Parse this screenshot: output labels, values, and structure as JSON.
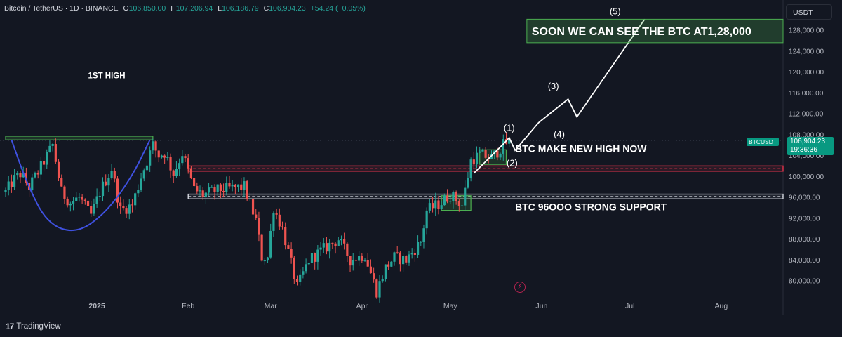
{
  "header": {
    "symbol": "Bitcoin / TetherUS · 1D · BINANCE",
    "o_key": "O",
    "o_val": "106,850.00",
    "h_key": "H",
    "h_val": "107,206.94",
    "l_key": "L",
    "l_val": "106,186.79",
    "c_key": "C",
    "c_val": "106,904.23",
    "change": "+54.24 (+0.05%)"
  },
  "currency_button": "USDT",
  "price_label": {
    "symbol": "BTCUSDT",
    "price": "106,904.23",
    "countdown": "19:36:36"
  },
  "branding": {
    "mark": "17",
    "name": "TradingView"
  },
  "flash_icon": "lightning-icon",
  "colors": {
    "background": "#131722",
    "up": "#26a69a",
    "down": "#ef5350",
    "curve": "#3f51e0",
    "zone_green": "#4caf50",
    "resistance": "#e0334b"
  },
  "chart_data": {
    "type": "candlestick",
    "y_ticks": [
      "128,000.00",
      "124,000.00",
      "120,000.00",
      "116,000.00",
      "112,000.00",
      "108,000.00",
      "104,000.00",
      "100,000.00",
      "96,000.00",
      "92,000.00",
      "88,000.00",
      "84,000.00",
      "80,000.00"
    ],
    "ylim": [
      77500,
      131000
    ],
    "x_ticks": [
      {
        "label": "2025",
        "date": "2025-01-01"
      },
      {
        "label": "Feb",
        "date": "2025-02-01"
      },
      {
        "label": "Mar",
        "date": "2025-03-01"
      },
      {
        "label": "Apr",
        "date": "2025-04-01"
      },
      {
        "label": "May",
        "date": "2025-05-01"
      },
      {
        "label": "Jun",
        "date": "2025-06-01"
      },
      {
        "label": "Jul",
        "date": "2025-07-01"
      },
      {
        "label": "Aug",
        "date": "2025-08-01"
      }
    ],
    "last_price": 106904.23,
    "candles_start_date": "2024-12-01",
    "close_path": [
      [
        "2024-12-01",
        97000
      ],
      [
        "2024-12-04",
        99500
      ],
      [
        "2024-12-06",
        100500
      ],
      [
        "2024-12-09",
        98000
      ],
      [
        "2024-12-12",
        100800
      ],
      [
        "2024-12-16",
        105000
      ],
      [
        "2024-12-17",
        106000
      ],
      [
        "2024-12-20",
        97000
      ],
      [
        "2024-12-23",
        95000
      ],
      [
        "2024-12-26",
        96000
      ],
      [
        "2024-12-30",
        92500
      ],
      [
        "2025-01-02",
        97000
      ],
      [
        "2025-01-06",
        101500
      ],
      [
        "2025-01-09",
        93500
      ],
      [
        "2025-01-13",
        94500
      ],
      [
        "2025-01-16",
        100000
      ],
      [
        "2025-01-20",
        106000
      ],
      [
        "2025-01-22",
        104000
      ],
      [
        "2025-01-24",
        104500
      ],
      [
        "2025-01-27",
        100500
      ],
      [
        "2025-01-30",
        104500
      ],
      [
        "2025-02-03",
        97500
      ],
      [
        "2025-02-06",
        96500
      ],
      [
        "2025-02-12",
        97500
      ],
      [
        "2025-02-20",
        98000
      ],
      [
        "2025-02-24",
        91500
      ],
      [
        "2025-02-26",
        84500
      ],
      [
        "2025-02-28",
        84500
      ],
      [
        "2025-03-02",
        94000
      ],
      [
        "2025-03-05",
        90000
      ],
      [
        "2025-03-10",
        78800
      ],
      [
        "2025-03-14",
        84000
      ],
      [
        "2025-03-20",
        86500
      ],
      [
        "2025-03-24",
        88000
      ],
      [
        "2025-03-28",
        84000
      ],
      [
        "2025-04-02",
        85000
      ],
      [
        "2025-04-06",
        78000
      ],
      [
        "2025-04-09",
        82500
      ],
      [
        "2025-04-12",
        84500
      ],
      [
        "2025-04-16",
        84000
      ],
      [
        "2025-04-21",
        87500
      ],
      [
        "2025-04-23",
        93500
      ],
      [
        "2025-04-28",
        95000
      ],
      [
        "2025-05-01",
        96500
      ],
      [
        "2025-05-05",
        94500
      ],
      [
        "2025-05-08",
        103000
      ],
      [
        "2025-05-11",
        104200
      ],
      [
        "2025-05-15",
        103500
      ],
      [
        "2025-05-19",
        106000
      ],
      [
        "2025-05-21",
        106904
      ]
    ],
    "annotations": {
      "texts": [
        {
          "id": "first_high",
          "text": "1ST HIGH",
          "x": "2024-12-29",
          "y": 118800
        },
        {
          "id": "new_high",
          "text": "BTC MAKE NEW HIGH NOW",
          "x": "2025-05-23",
          "y": 104700
        },
        {
          "id": "support",
          "text": "BTC 96OOO STRONG SUPPORT",
          "x": "2025-05-23",
          "y": 93500
        }
      ],
      "banner": {
        "text": "SOON WE CAN SEE THE BTC AT1,28,000",
        "x0": "2025-05-27",
        "x1": "2025-08-22",
        "y_top": 130100,
        "y_bottom": 125600
      },
      "wave_path": [
        [
          "2025-05-09",
          100600
        ],
        [
          "2025-05-19",
          106200
        ],
        [
          "2025-05-21",
          107400
        ],
        [
          "2025-05-23",
          105000
        ],
        [
          "2025-05-31",
          110300
        ],
        [
          "2025-06-10",
          114800
        ],
        [
          "2025-06-13",
          111400
        ],
        [
          "2025-07-06",
          130100
        ]
      ],
      "wave_labels": [
        {
          "text": "(1)",
          "x": "2025-05-21",
          "y": 108700
        },
        {
          "text": "(2)",
          "x": "2025-05-22",
          "y": 102000
        },
        {
          "text": "(3)",
          "x": "2025-06-05",
          "y": 116700
        },
        {
          "text": "(4)",
          "x": "2025-06-07",
          "y": 107500
        },
        {
          "text": "(5)",
          "x": "2025-06-26",
          "y": 131000
        }
      ],
      "resistance_zone": {
        "x0": "2025-02-01",
        "x1": "2025-08-22",
        "y_top": 102000,
        "y_bottom": 101000
      },
      "support_zone": {
        "x0": "2025-02-01",
        "x1": "2025-08-22",
        "y_top": 96600,
        "y_bottom": 95700
      },
      "green_boxes": [
        {
          "x0": "2024-12-01",
          "x1": "2025-01-20",
          "y_top": 107700,
          "y_bottom": 107000
        },
        {
          "x0": "2025-04-28",
          "x1": "2025-05-08",
          "y_top": 96300,
          "y_bottom": 93500
        },
        {
          "x0": "2025-05-11",
          "x1": "2025-05-20",
          "y_top": 105100,
          "y_bottom": 102300
        }
      ],
      "cup_curve": [
        [
          "2024-12-03",
          107000
        ],
        [
          "2024-12-08",
          99000
        ],
        [
          "2024-12-15",
          91000
        ],
        [
          "2024-12-25",
          89000
        ],
        [
          "2025-01-04",
          93000
        ],
        [
          "2025-01-13",
          100000
        ],
        [
          "2025-01-19",
          107000
        ]
      ]
    }
  }
}
